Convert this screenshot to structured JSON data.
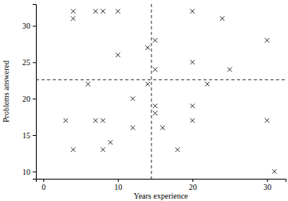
{
  "chart_data": {
    "type": "scatter",
    "x_label": "Years experience",
    "y_label": "Problems answered",
    "x": [
      4,
      4,
      7,
      8,
      10,
      20,
      24,
      30,
      14,
      15,
      10,
      20,
      15,
      25,
      6,
      14,
      22,
      12,
      20,
      15,
      15,
      20,
      3,
      7,
      8,
      30,
      12,
      16,
      9,
      8,
      4,
      18,
      31
    ],
    "values": [
      32,
      31,
      32,
      32,
      32,
      32,
      31,
      28,
      27,
      28,
      26,
      25,
      24,
      24,
      22,
      22,
      22,
      20,
      19,
      19,
      18,
      17,
      17,
      17,
      17,
      17,
      16,
      16,
      14,
      13,
      13,
      13,
      10
    ],
    "color": "#000000",
    "marker": "x",
    "reference_lines": {
      "x": 14.5,
      "y": 22.6
    },
    "xlim": [
      -1,
      32.5
    ],
    "ylim": [
      9,
      33
    ],
    "xticks": [
      0,
      10,
      20,
      30
    ],
    "yticks": [
      10,
      15,
      20,
      25,
      30
    ]
  }
}
